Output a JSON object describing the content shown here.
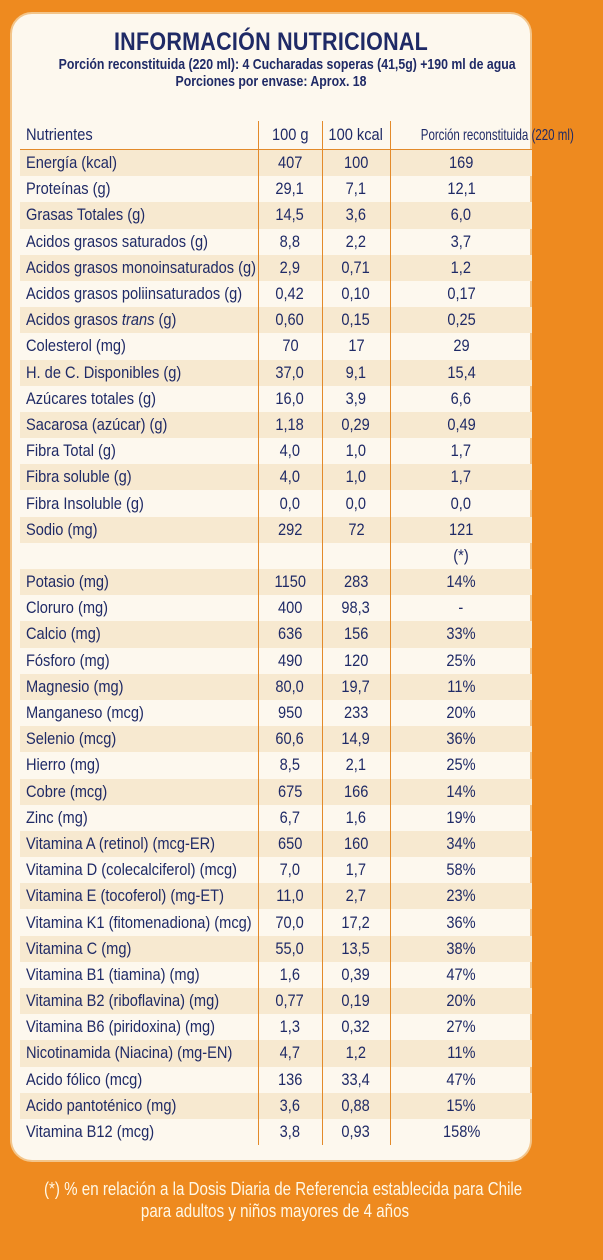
{
  "header": {
    "title": "INFORMACIÓN NUTRICIONAL",
    "serving": "Porción reconstituida (220 ml): 4 Cucharadas soperas (41,5g) +190 ml de agua",
    "servings_per_package": "Porciones por envase: Aprox. 18"
  },
  "table": {
    "columns": [
      "Nutrientes",
      "100 g",
      "100 kcal",
      "Porción reconstituida (220 ml)"
    ],
    "rows": [
      {
        "name": "Energía (kcal)",
        "g100": "407",
        "kcal100": "100",
        "portion": "169"
      },
      {
        "name": "Proteínas (g)",
        "g100": "29,1",
        "kcal100": "7,1",
        "portion": "12,1"
      },
      {
        "name": "Grasas Totales (g)",
        "g100": "14,5",
        "kcal100": "3,6",
        "portion": "6,0"
      },
      {
        "name": "Acidos grasos saturados (g)",
        "g100": "8,8",
        "kcal100": "2,2",
        "portion": "3,7"
      },
      {
        "name": "Acidos grasos monoinsaturados (g)",
        "g100": "2,9",
        "kcal100": "0,71",
        "portion": "1,2"
      },
      {
        "name": "Acidos grasos poliinsaturados (g)",
        "g100": "0,42",
        "kcal100": "0,10",
        "portion": "0,17"
      },
      {
        "name": "Acidos grasos trans (g)",
        "g100": "0,60",
        "kcal100": "0,15",
        "portion": "0,25"
      },
      {
        "name": "Colesterol (mg)",
        "g100": "70",
        "kcal100": "17",
        "portion": "29"
      },
      {
        "name": "H. de C. Disponibles (g)",
        "g100": "37,0",
        "kcal100": "9,1",
        "portion": "15,4"
      },
      {
        "name": "Azúcares totales (g)",
        "g100": "16,0",
        "kcal100": "3,9",
        "portion": "6,6"
      },
      {
        "name": "Sacarosa (azúcar) (g)",
        "g100": "1,18",
        "kcal100": "0,29",
        "portion": "0,49"
      },
      {
        "name": "Fibra Total (g)",
        "g100": "4,0",
        "kcal100": "1,0",
        "portion": "1,7"
      },
      {
        "name": "Fibra soluble (g)",
        "g100": "4,0",
        "kcal100": "1,0",
        "portion": "1,7"
      },
      {
        "name": "Fibra Insoluble (g)",
        "g100": "0,0",
        "kcal100": "0,0",
        "portion": "0,0"
      },
      {
        "name": "Sodio (mg)",
        "g100": "292",
        "kcal100": "72",
        "portion": "121"
      },
      {
        "name": "",
        "g100": "",
        "kcal100": "",
        "portion": "(*)"
      },
      {
        "name": "Potasio (mg)",
        "g100": "1150",
        "kcal100": "283",
        "portion": "14%"
      },
      {
        "name": "Cloruro (mg)",
        "g100": "400",
        "kcal100": "98,3",
        "portion": "-"
      },
      {
        "name": "Calcio (mg)",
        "g100": "636",
        "kcal100": "156",
        "portion": "33%"
      },
      {
        "name": "Fósforo (mg)",
        "g100": "490",
        "kcal100": "120",
        "portion": "25%"
      },
      {
        "name": "Magnesio (mg)",
        "g100": "80,0",
        "kcal100": "19,7",
        "portion": "11%"
      },
      {
        "name": "Manganeso (mcg)",
        "g100": "950",
        "kcal100": "233",
        "portion": "20%"
      },
      {
        "name": "Selenio (mcg)",
        "g100": "60,6",
        "kcal100": "14,9",
        "portion": "36%"
      },
      {
        "name": "Hierro (mg)",
        "g100": "8,5",
        "kcal100": "2,1",
        "portion": "25%"
      },
      {
        "name": "Cobre (mcg)",
        "g100": "675",
        "kcal100": "166",
        "portion": "14%"
      },
      {
        "name": "Zinc (mg)",
        "g100": "6,7",
        "kcal100": "1,6",
        "portion": "19%"
      },
      {
        "name": "Vitamina A (retinol) (mcg-ER)",
        "g100": "650",
        "kcal100": "160",
        "portion": "34%"
      },
      {
        "name": "Vitamina D (colecalciferol) (mcg)",
        "g100": "7,0",
        "kcal100": "1,7",
        "portion": "58%"
      },
      {
        "name": "Vitamina E (tocoferol) (mg-ET)",
        "g100": "11,0",
        "kcal100": "2,7",
        "portion": "23%"
      },
      {
        "name": "Vitamina K1 (fitomenadiona) (mcg)",
        "g100": "70,0",
        "kcal100": "17,2",
        "portion": "36%"
      },
      {
        "name": "Vitamina C (mg)",
        "g100": "55,0",
        "kcal100": "13,5",
        "portion": "38%"
      },
      {
        "name": "Vitamina B1 (tiamina) (mg)",
        "g100": "1,6",
        "kcal100": "0,39",
        "portion": "47%"
      },
      {
        "name": "Vitamina B2 (riboflavina) (mg)",
        "g100": "0,77",
        "kcal100": "0,19",
        "portion": "20%"
      },
      {
        "name": "Vitamina B6 (piridoxina) (mg)",
        "g100": "1,3",
        "kcal100": "0,32",
        "portion": "27%"
      },
      {
        "name": "Nicotinamida (Niacina) (mg-EN)",
        "g100": "4,7",
        "kcal100": "1,2",
        "portion": "11%"
      },
      {
        "name": "Acido fólico (mcg)",
        "g100": "136",
        "kcal100": "33,4",
        "portion": "47%"
      },
      {
        "name": "Acido pantoténico (mg)",
        "g100": "3,6",
        "kcal100": "0,88",
        "portion": "15%"
      },
      {
        "name": "Vitamina B12 (mcg)",
        "g100": "3,8",
        "kcal100": "0,93",
        "portion": "158%"
      }
    ]
  },
  "footnote": {
    "line1": "(*) % en relación a la Dosis Diaria de Referencia establecida para Chile",
    "line2": "para adultos y niños mayores de 4 años"
  },
  "colors": {
    "background": "#ee8a1f",
    "card": "#fdf8ee",
    "stripe": "#f7e9d0",
    "text": "#1f2a66",
    "rule": "#e38a2a"
  }
}
